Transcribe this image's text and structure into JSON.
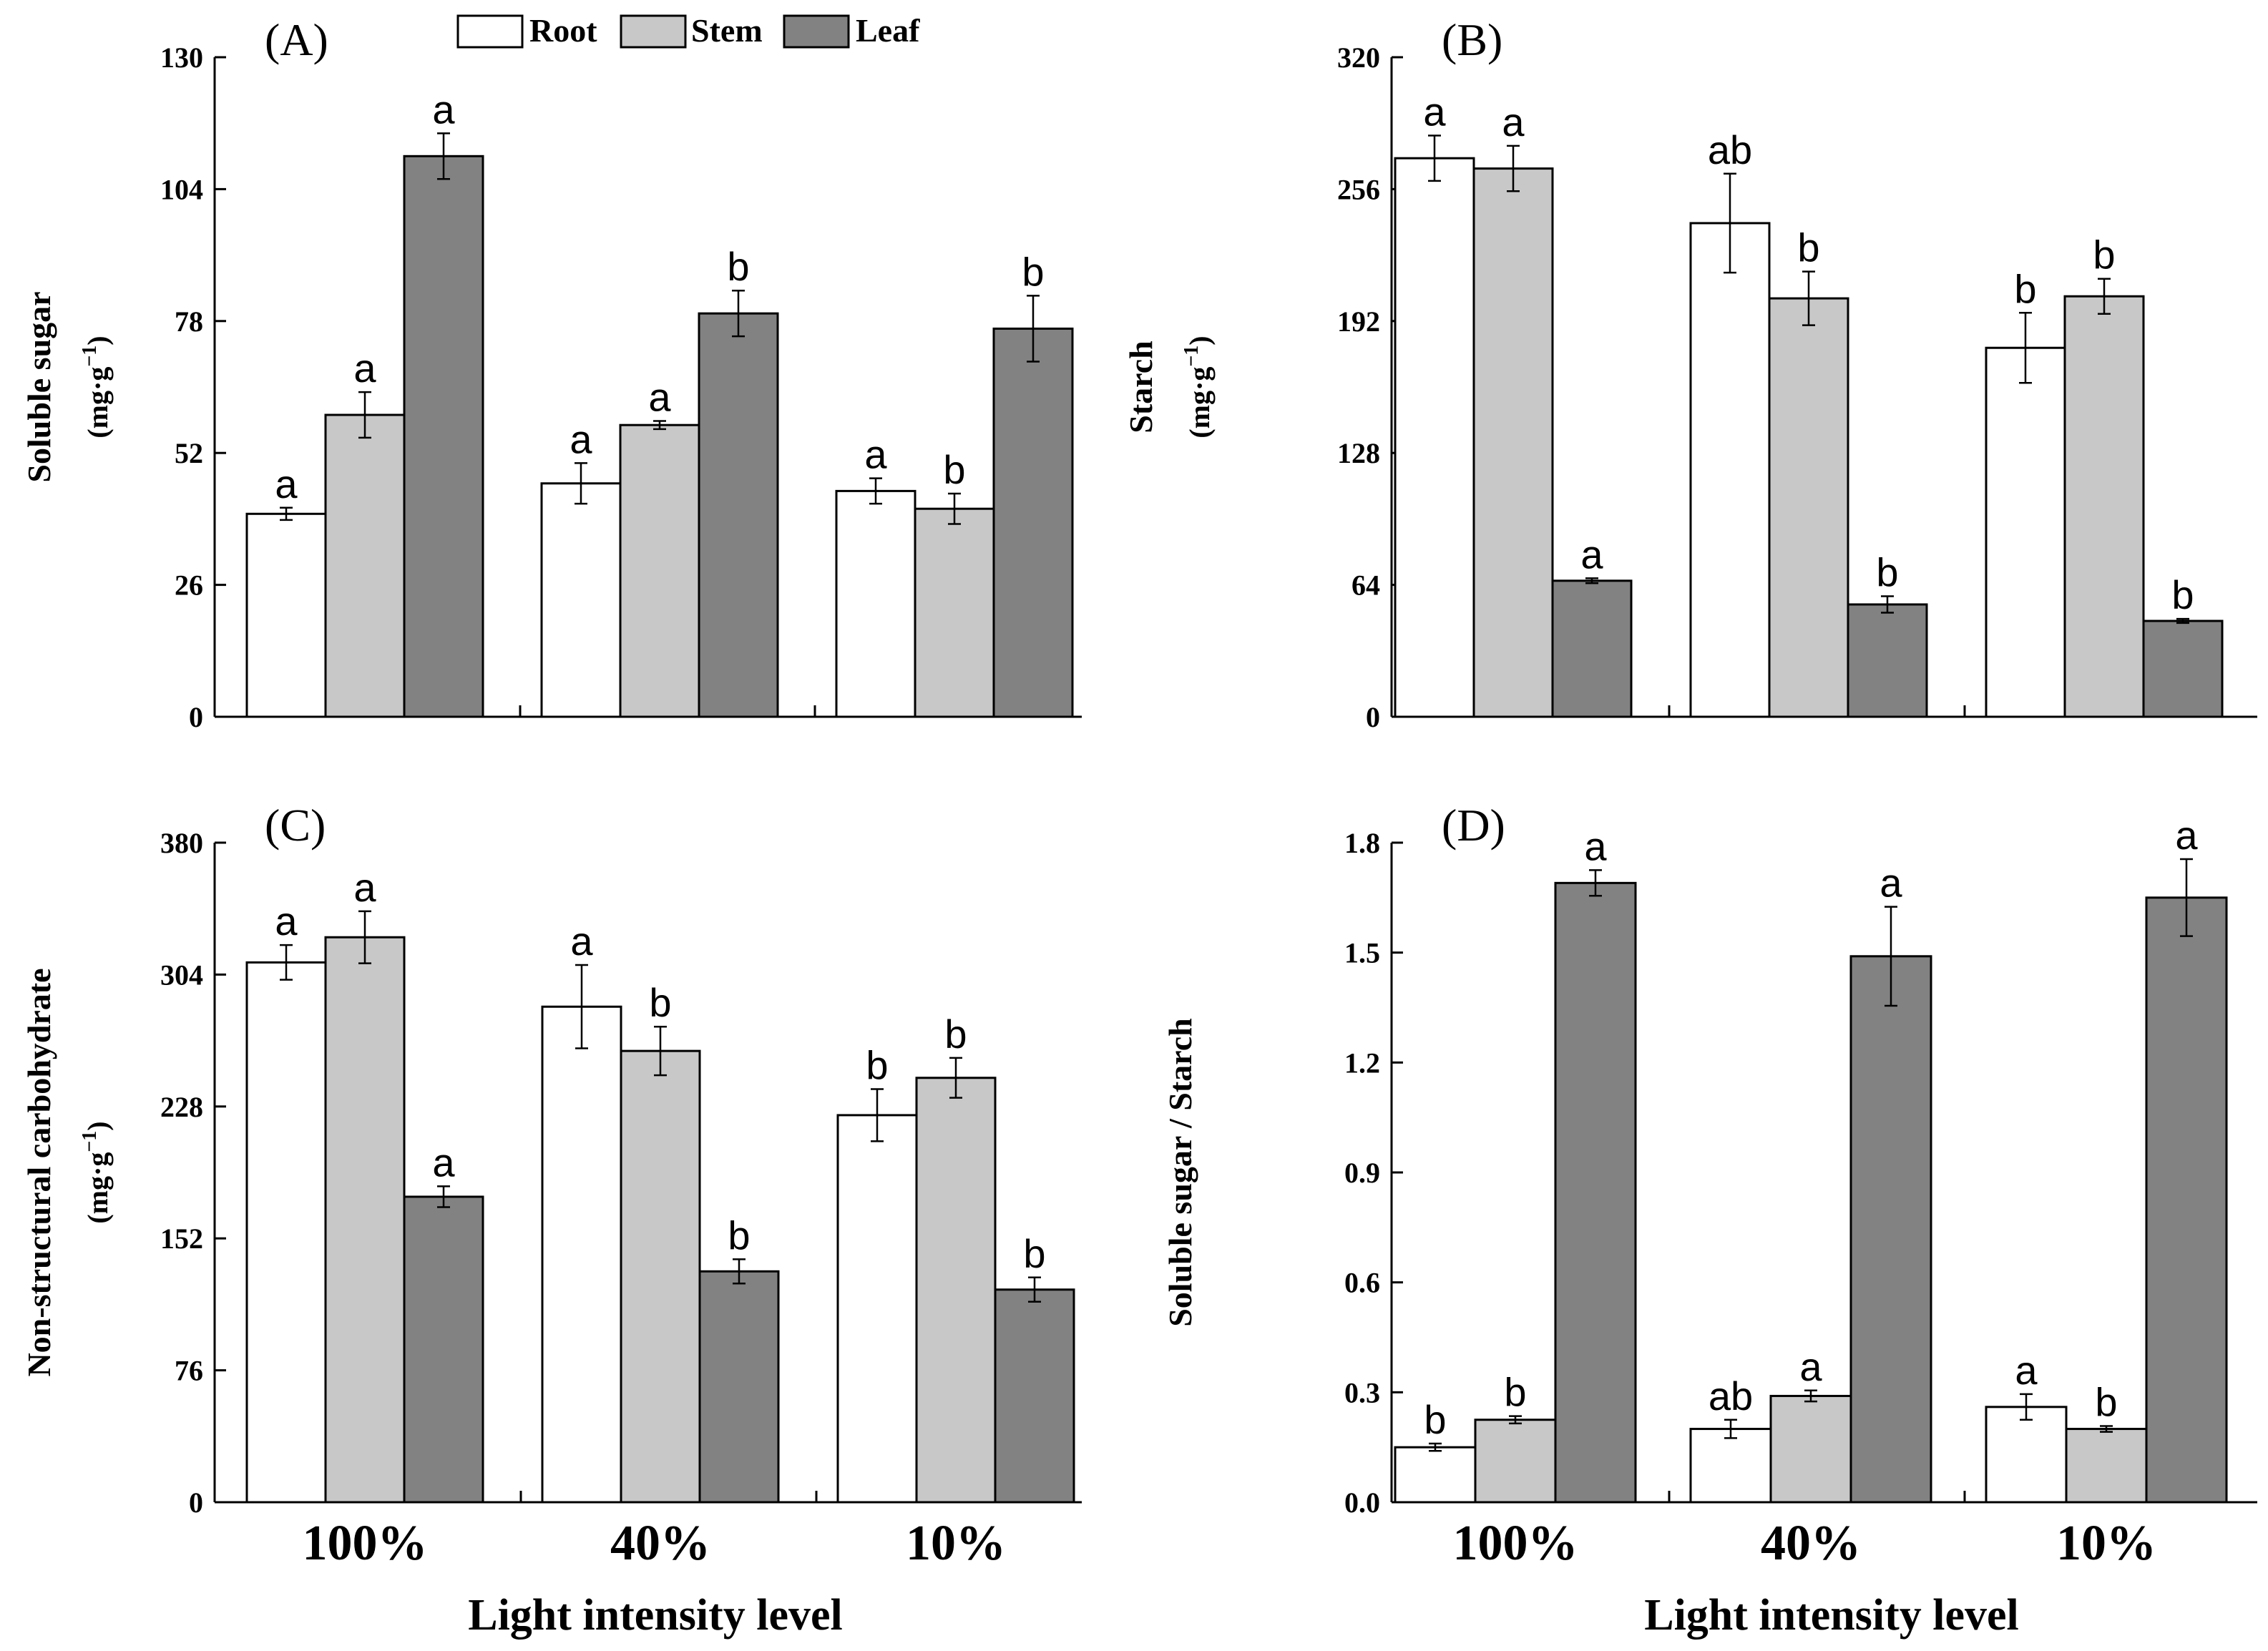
{
  "chart_data": [
    {
      "type": "bar",
      "panel": "(A)",
      "title": "",
      "xlabel": "",
      "ylabel": "Soluble sugar",
      "yunit": "(mg·g",
      "yunit_sup": "−1",
      "yunit_close": ")",
      "ylim": [
        0,
        130
      ],
      "yticks": [
        "0",
        "26",
        "52",
        "78",
        "104",
        "130"
      ],
      "categories": [
        "100%",
        "40%",
        "10%"
      ],
      "series": [
        {
          "name": "Root",
          "values": [
            40,
            46,
            44.5
          ],
          "errors": [
            1.2,
            4,
            2.5
          ],
          "letters": [
            "a",
            "a",
            "a"
          ]
        },
        {
          "name": "Stem",
          "values": [
            59.5,
            57.5,
            41
          ],
          "errors": [
            4.5,
            0.8,
            3
          ],
          "letters": [
            "a",
            "a",
            "b"
          ]
        },
        {
          "name": "Leaf",
          "values": [
            110.5,
            79.5,
            76.5
          ],
          "errors": [
            4.5,
            4.5,
            6.5
          ],
          "letters": [
            "a",
            "b",
            "b"
          ]
        }
      ]
    },
    {
      "type": "bar",
      "panel": "(B)",
      "title": "",
      "xlabel": "",
      "ylabel": "Starch",
      "yunit": "(mg·g",
      "yunit_sup": "−1",
      "yunit_close": ")",
      "ylim": [
        0,
        320
      ],
      "yticks": [
        "0",
        "64",
        "128",
        "192",
        "256",
        "320"
      ],
      "categories": [
        "100%",
        "40%",
        "10%"
      ],
      "series": [
        {
          "name": "Root",
          "values": [
            271,
            239.5,
            179
          ],
          "errors": [
            11,
            24,
            17
          ],
          "letters": [
            "a",
            "ab",
            "b"
          ]
        },
        {
          "name": "Stem",
          "values": [
            266,
            203,
            204
          ],
          "errors": [
            11,
            13,
            8.5
          ],
          "letters": [
            "a",
            "b",
            "b"
          ]
        },
        {
          "name": "Leaf",
          "values": [
            66,
            54.5,
            46.5
          ],
          "errors": [
            1.2,
            4,
            1
          ],
          "letters": [
            "a",
            "b",
            "b"
          ]
        }
      ]
    },
    {
      "type": "bar",
      "panel": "(C)",
      "title": "",
      "xlabel": "Light intensity level",
      "ylabel": "Non-structural carbohydrate",
      "yunit": "(mg·g",
      "yunit_sup": "−1",
      "yunit_close": ")",
      "ylim": [
        0,
        380
      ],
      "yticks": [
        "0",
        "76",
        "152",
        "228",
        "304",
        "380"
      ],
      "categories": [
        "100%",
        "40%",
        "10%"
      ],
      "series": [
        {
          "name": "Root",
          "values": [
            311,
            285.5,
            223
          ],
          "errors": [
            10,
            24,
            15
          ],
          "letters": [
            "a",
            "a",
            "b"
          ]
        },
        {
          "name": "Stem",
          "values": [
            325.5,
            260,
            244.5
          ],
          "errors": [
            15,
            14,
            11.5
          ],
          "letters": [
            "a",
            "b",
            "b"
          ]
        },
        {
          "name": "Leaf",
          "values": [
            176,
            133,
            122.5
          ],
          "errors": [
            6,
            7,
            7
          ],
          "letters": [
            "a",
            "b",
            "b"
          ]
        }
      ]
    },
    {
      "type": "bar",
      "panel": "(D)",
      "title": "",
      "xlabel": "Light intensity level",
      "ylabel": "Soluble sugar / Starch",
      "ylim": [
        0,
        1.8
      ],
      "yticks": [
        "0.0",
        "0.3",
        "0.6",
        "0.9",
        "1.2",
        "1.5",
        "1.8"
      ],
      "categories": [
        "100%",
        "40%",
        "10%"
      ],
      "series": [
        {
          "name": "Root",
          "values": [
            0.15,
            0.2,
            0.26
          ],
          "errors": [
            0.01,
            0.025,
            0.035
          ],
          "letters": [
            "b",
            "ab",
            "a"
          ]
        },
        {
          "name": "Stem",
          "values": [
            0.225,
            0.29,
            0.2
          ],
          "errors": [
            0.01,
            0.015,
            0.008
          ],
          "letters": [
            "b",
            "a",
            "b"
          ]
        },
        {
          "name": "Leaf",
          "values": [
            1.69,
            1.49,
            1.65
          ],
          "errors": [
            0.035,
            0.135,
            0.105
          ],
          "letters": [
            "a",
            "a",
            "a"
          ]
        }
      ]
    }
  ],
  "legend": {
    "items": [
      {
        "label": "Root",
        "color": "#ffffff"
      },
      {
        "label": "Stem",
        "color": "#c8c8c8"
      },
      {
        "label": "Leaf",
        "color": "#828282"
      }
    ]
  },
  "colors": {
    "root": "#ffffff",
    "stem": "#c8c8c8",
    "leaf": "#828282",
    "stroke": "#000000"
  }
}
